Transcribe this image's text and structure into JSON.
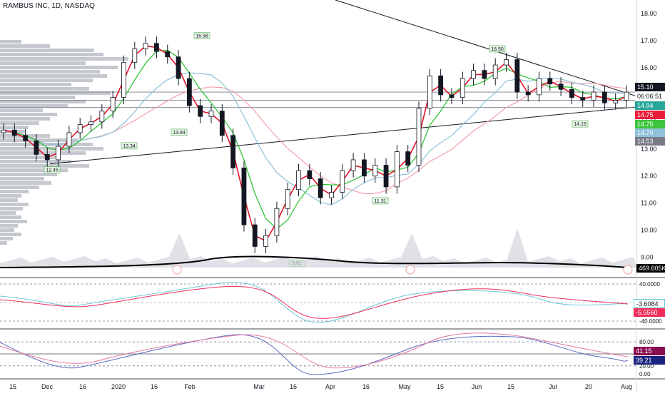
{
  "header": {
    "title": "RAMBUS INC, 1D, NASDAQ"
  },
  "chart_data": {
    "type": "candlestick",
    "symbol": "RAMBUS INC",
    "interval": "1D",
    "exchange": "NASDAQ",
    "x_ticks": [
      "15",
      "Dec",
      "16",
      "2020",
      "16",
      "Feb",
      "Mar",
      "16",
      "Apr",
      "16",
      "May",
      "15",
      "Jun",
      "15",
      "Jul",
      "20",
      "Aug"
    ],
    "price_ticks": [
      "18.00",
      "17.00",
      "16.00",
      "15.00",
      "14.00",
      "13.00",
      "12.00",
      "11.00",
      "10.00",
      "9.00"
    ],
    "price_range": [
      8.7,
      18.5
    ],
    "price_series_approx": [
      [
        "Nov 15",
        13.7
      ],
      [
        "Nov 22",
        13.5
      ],
      [
        "Dec 1",
        13.3
      ],
      [
        "Dec 6",
        12.8
      ],
      [
        "Dec 12",
        12.6
      ],
      [
        "Dec 20",
        13.1
      ],
      [
        "Jan 2",
        13.6
      ],
      [
        "Jan 10",
        13.9
      ],
      [
        "Jan 17",
        14.0
      ],
      [
        "Jan 24",
        14.4
      ],
      [
        "Jan 29",
        14.9
      ],
      [
        "Feb 3",
        16.2
      ],
      [
        "Feb 7",
        16.7
      ],
      [
        "Feb 10",
        16.9
      ],
      [
        "Feb 14",
        16.6
      ],
      [
        "Feb 20",
        16.4
      ],
      [
        "Feb 24",
        15.6
      ],
      [
        "Feb 27",
        14.6
      ],
      [
        "Mar 2",
        14.2
      ],
      [
        "Mar 5",
        14.4
      ],
      [
        "Mar 9",
        13.5
      ],
      [
        "Mar 11",
        12.3
      ],
      [
        "Mar 16",
        10.2
      ],
      [
        "Mar 18",
        9.4
      ],
      [
        "Mar 20",
        9.8
      ],
      [
        "Mar 24",
        10.8
      ],
      [
        "Mar 27",
        11.5
      ],
      [
        "Mar 31",
        12.2
      ],
      [
        "Apr 3",
        11.9
      ],
      [
        "Apr 7",
        11.2
      ],
      [
        "Apr 9",
        11.4
      ],
      [
        "Apr 14",
        12.2
      ],
      [
        "Apr 17",
        12.6
      ],
      [
        "Apr 22",
        12.0
      ],
      [
        "Apr 24",
        12.4
      ],
      [
        "Apr 28",
        11.6
      ],
      [
        "May 1",
        12.9
      ],
      [
        "May 5",
        12.4
      ],
      [
        "May 7",
        14.5
      ],
      [
        "May 11",
        15.7
      ],
      [
        "May 14",
        15.0
      ],
      [
        "May 18",
        14.9
      ],
      [
        "May 20",
        15.6
      ],
      [
        "May 26",
        15.9
      ],
      [
        "Jun 1",
        15.6
      ],
      [
        "Jun 5",
        16.1
      ],
      [
        "Jun 9",
        16.3
      ],
      [
        "Jun 11",
        15.1
      ],
      [
        "Jun 15",
        15.0
      ],
      [
        "Jun 19",
        15.6
      ],
      [
        "Jun 24",
        15.4
      ],
      [
        "Jun 30",
        15.2
      ],
      [
        "Jul 7",
        14.9
      ],
      [
        "Jul 14",
        14.8
      ],
      [
        "Jul 20",
        15.1
      ],
      [
        "Jul 24",
        14.7
      ],
      [
        "Jul 29",
        14.8
      ],
      [
        "Aug 3",
        15.1
      ]
    ],
    "peak_labels": [
      "16.98",
      "16.50"
    ],
    "trough_labels": [
      "12.45",
      "13.34",
      "13.84",
      "9.01",
      "11.31",
      "14.15"
    ],
    "price_axis_labels": [
      {
        "value": "15.10",
        "bg": "#131722",
        "fg": "#ffffff"
      },
      {
        "value": "06:06:51",
        "bg": "#ffffff",
        "fg": "#131722"
      },
      {
        "value": "14.94",
        "bg": "#26a69a",
        "fg": "#ffffff"
      },
      {
        "value": "14.75",
        "bg": "#e91e3a",
        "fg": "#ffffff"
      },
      {
        "value": "14.75",
        "bg": "#3cc43c",
        "fg": "#ffffff"
      },
      {
        "value": "14.70",
        "bg": "#8fc1d8",
        "fg": "#ffffff"
      },
      {
        "value": "14.53",
        "bg": "#787b86",
        "fg": "#ffffff"
      }
    ],
    "volume_ma_label": "469.605K",
    "trendlines": "descending resistance from top-left to Aug; ascending support from Dec to Aug",
    "moving_averages": [
      {
        "color": "#e0142b",
        "kind": "fast"
      },
      {
        "color": "#22c22b",
        "kind": "medium"
      },
      {
        "color": "#8fc1d8",
        "kind": "slow"
      },
      {
        "color": "#f2a0a8",
        "kind": "long"
      }
    ],
    "macd_panel": {
      "ticks": [
        "40.0000",
        "-40.0000"
      ],
      "labels": [
        {
          "value": "-3.6084",
          "bg": "#ffffff",
          "fg": "#131722",
          "border": "#60c8d8"
        },
        {
          "value": "-5.5560",
          "bg": "#ef2d5a",
          "fg": "#ffffff"
        }
      ]
    },
    "stoch_panel": {
      "ticks": [
        "80.00",
        "20.00",
        "0.00"
      ],
      "labels": [
        {
          "value": "41.15",
          "bg": "#880e4f",
          "fg": "#ffffff"
        },
        {
          "value": "39.21",
          "bg": "#1a237e",
          "fg": "#ffffff"
        }
      ]
    }
  }
}
